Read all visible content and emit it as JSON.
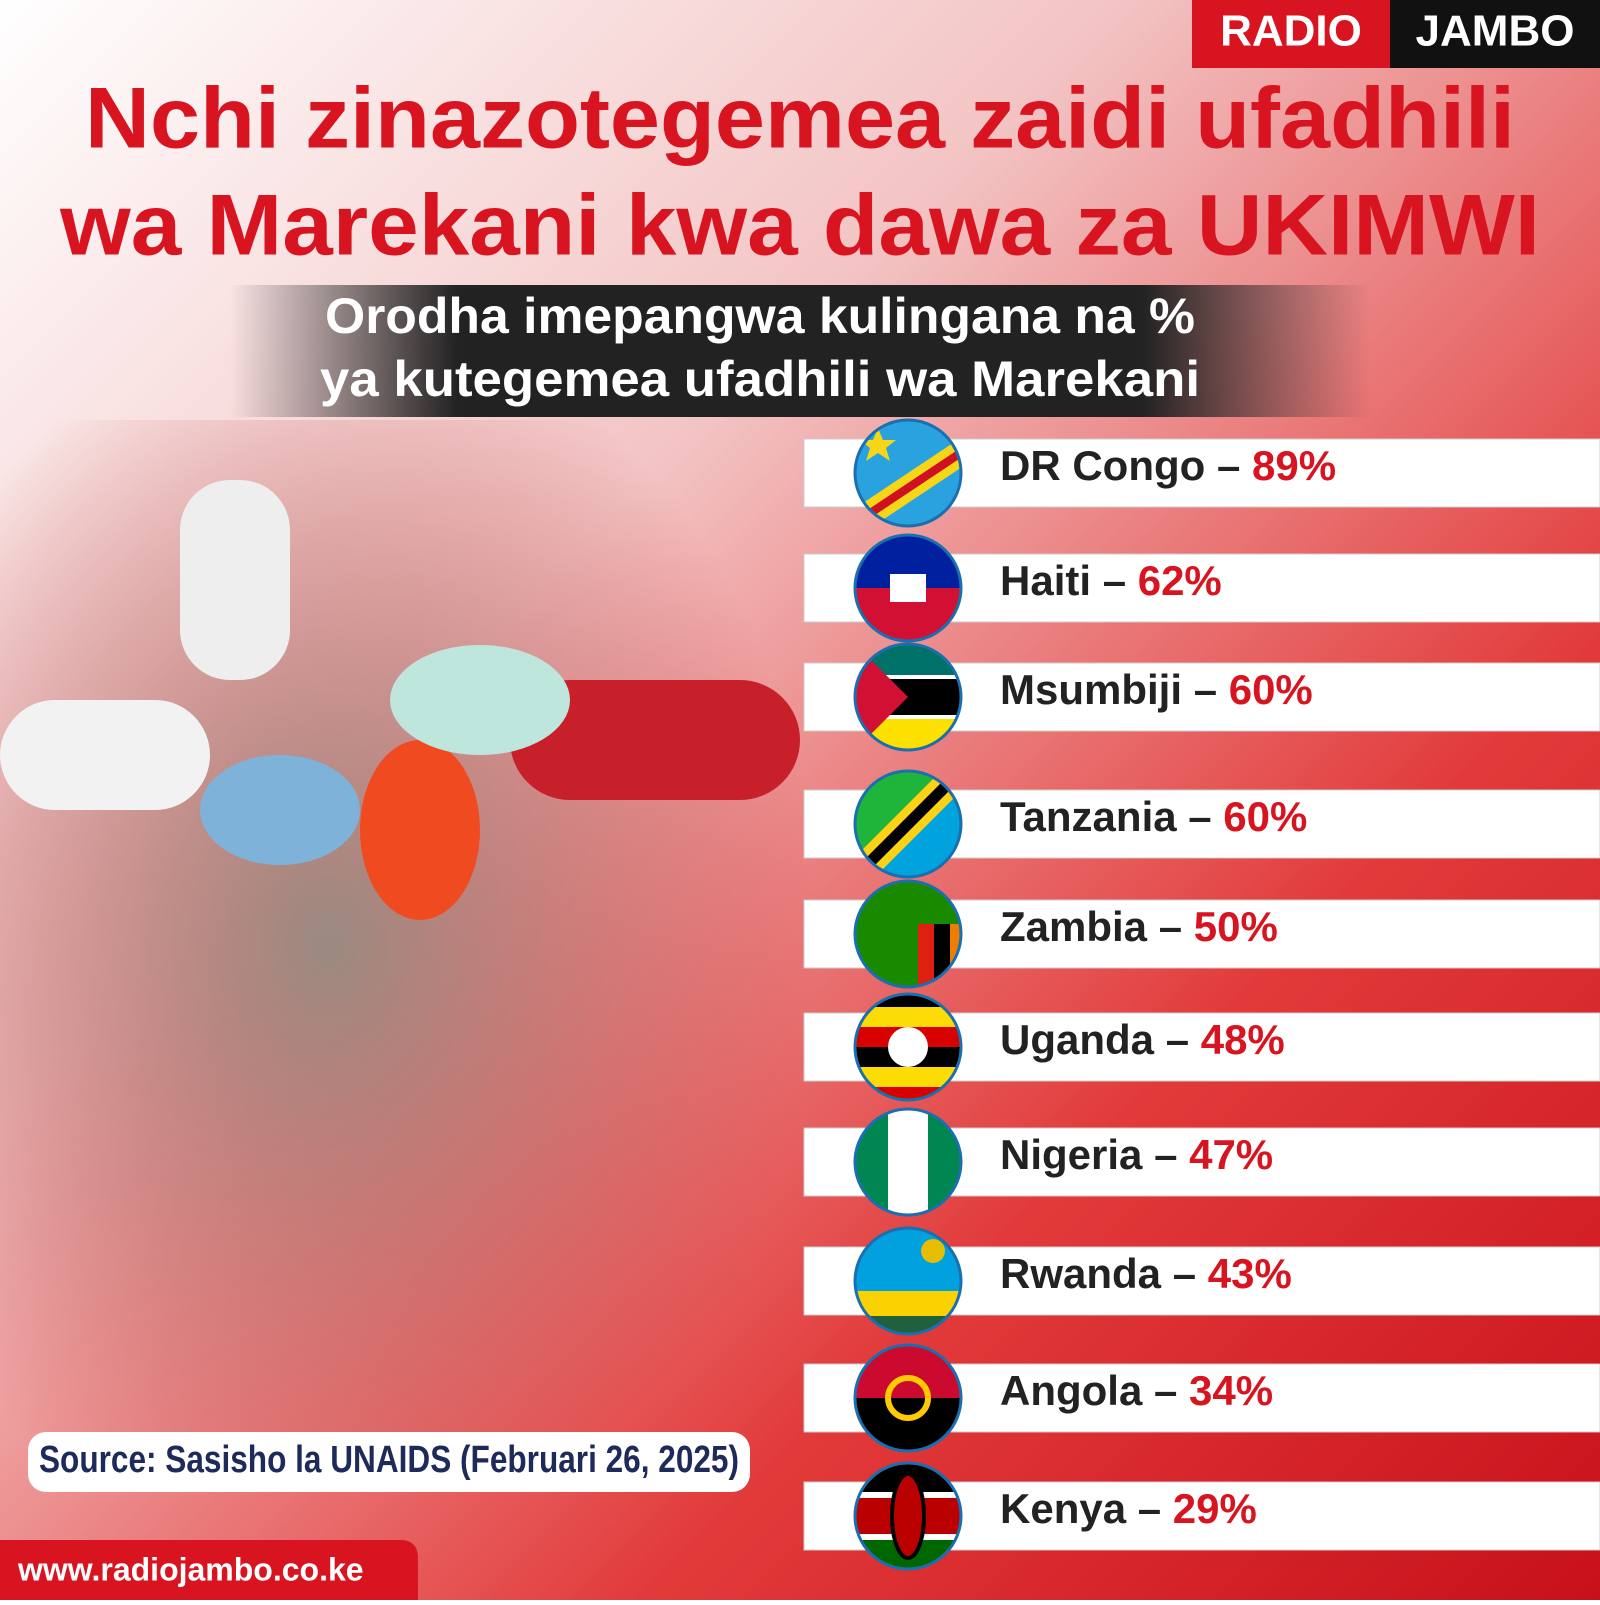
{
  "brand": {
    "left": "RADIO",
    "right": "JAMBO"
  },
  "title": [
    "Nchi zinazotegemea zaidi ufadhili",
    "wa Marekani kwa dawa za UKIMWI"
  ],
  "subtitle": [
    "Orodha imepangwa kulingana na %",
    "ya kutegemea ufadhili wa Marekani"
  ],
  "separator": "–",
  "items": [
    {
      "country": "DR Congo",
      "percent": "89%"
    },
    {
      "country": "Haiti",
      "percent": "62%"
    },
    {
      "country": "Msumbiji",
      "percent": "60%"
    },
    {
      "country": "Tanzania",
      "percent": "60%"
    },
    {
      "country": "Zambia",
      "percent": "50%"
    },
    {
      "country": "Uganda",
      "percent": "48%"
    },
    {
      "country": "Nigeria",
      "percent": "47%"
    },
    {
      "country": "Rwanda",
      "percent": "43%"
    },
    {
      "country": "Angola",
      "percent": "34%"
    },
    {
      "country": "Kenya",
      "percent": "29%"
    }
  ],
  "source": "Source: Sasisho la UNAIDS (Februari 26, 2025)",
  "website": "www.radiojambo.co.ke"
}
